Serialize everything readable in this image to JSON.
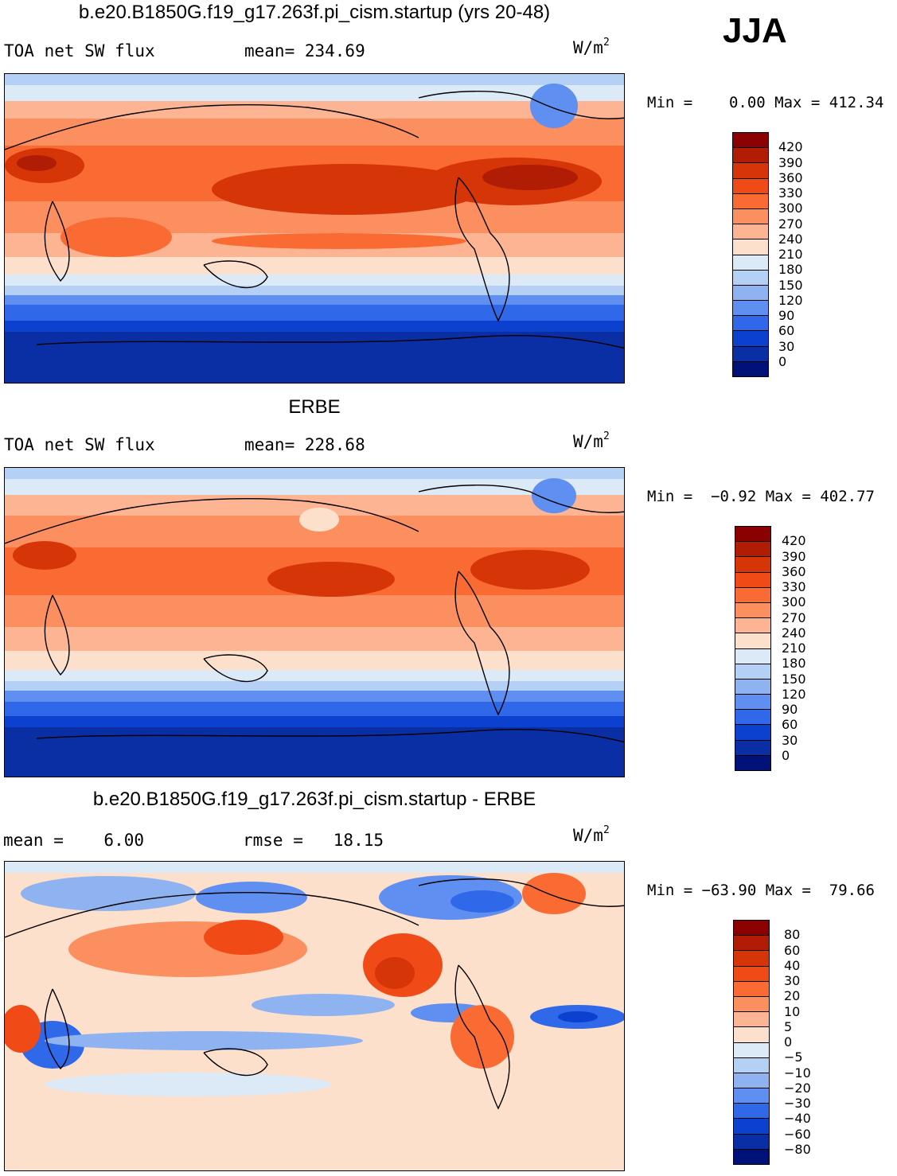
{
  "season": "JJA",
  "panels": [
    {
      "id": "model",
      "title": "b.e20.B1850G.f19_g17.263f.pi_cism.startup (yrs 20-48)",
      "left_text": "TOA net SW flux",
      "center_text": "mean= 234.69",
      "unit": "W/m",
      "unit_sup": "2",
      "minmax": "Min =    0.00 Max = 412.34",
      "colorbar": {
        "labels": [
          "420",
          "390",
          "360",
          "330",
          "300",
          "270",
          "240",
          "210",
          "180",
          "150",
          "120",
          "90",
          "60",
          "30",
          "0"
        ],
        "colors": [
          "#8b0000",
          "#b01d04",
          "#d63508",
          "#f04b17",
          "#fa6b34",
          "#fb8f5f",
          "#fcb493",
          "#fde0cb",
          "#dceaf7",
          "#b5d0f5",
          "#8fb3f0",
          "#5f8ff0",
          "#2f68e8",
          "#0c40cf",
          "#0a2ea4",
          "#001278"
        ]
      }
    },
    {
      "id": "obs",
      "title": "ERBE",
      "left_text": "TOA net SW flux",
      "center_text": "mean= 228.68",
      "unit": "W/m",
      "unit_sup": "2",
      "minmax": "Min =  −0.92 Max = 402.77",
      "colorbar": {
        "labels": [
          "420",
          "390",
          "360",
          "330",
          "300",
          "270",
          "240",
          "210",
          "180",
          "150",
          "120",
          "90",
          "60",
          "30",
          "0"
        ],
        "colors": [
          "#8b0000",
          "#b01d04",
          "#d63508",
          "#f04b17",
          "#fa6b34",
          "#fb8f5f",
          "#fcb493",
          "#fde0cb",
          "#dceaf7",
          "#b5d0f5",
          "#8fb3f0",
          "#5f8ff0",
          "#2f68e8",
          "#0c40cf",
          "#0a2ea4",
          "#001278"
        ]
      }
    },
    {
      "id": "diff",
      "title": "b.e20.B1850G.f19_g17.263f.pi_cism.startup - ERBE",
      "left_text": "mean =    6.00",
      "center_text": "rmse =   18.15",
      "unit": "W/m",
      "unit_sup": "2",
      "minmax": "Min = −63.90 Max =  79.66",
      "colorbar": {
        "labels": [
          "80",
          "60",
          "40",
          "30",
          "20",
          "10",
          "5",
          "0",
          "−5",
          "−10",
          "−20",
          "−30",
          "−40",
          "−60",
          "−80"
        ],
        "colors": [
          "#8b0000",
          "#b01d04",
          "#d63508",
          "#f04b17",
          "#fa6b34",
          "#fb8f5f",
          "#fcb493",
          "#fde0cb",
          "#dceaf7",
          "#b5d0f5",
          "#8fb3f0",
          "#5f8ff0",
          "#2f68e8",
          "#0c40cf",
          "#0a2ea4",
          "#001278"
        ]
      }
    }
  ]
}
